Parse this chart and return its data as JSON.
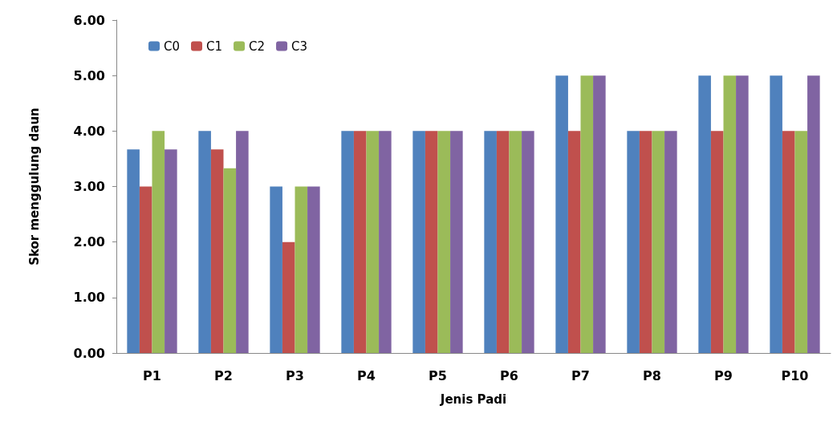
{
  "chart_data": {
    "type": "bar",
    "xlabel": "Jenis Padi",
    "ylabel": "Skor menggulung daun",
    "categories": [
      "P1",
      "P2",
      "P3",
      "P4",
      "P5",
      "P6",
      "P7",
      "P8",
      "P9",
      "P10"
    ],
    "series": [
      {
        "name": "C0",
        "color": "#4f81bd",
        "values": [
          3.67,
          4,
          3,
          4,
          4,
          4,
          5,
          4,
          5,
          5
        ]
      },
      {
        "name": "C1",
        "color": "#c0504d",
        "values": [
          3,
          3.67,
          2,
          4,
          4,
          4,
          4,
          4,
          4,
          4
        ]
      },
      {
        "name": "C2",
        "color": "#9bbb59",
        "values": [
          4,
          3.33,
          3,
          4,
          4,
          4,
          5,
          4,
          5,
          4
        ]
      },
      {
        "name": "C3",
        "color": "#8064a2",
        "values": [
          3.67,
          4,
          3,
          4,
          4,
          4,
          5,
          4,
          5,
          5
        ]
      }
    ],
    "ylim": [
      0,
      6
    ],
    "yticks": [
      {
        "value": 0,
        "label": "0.00"
      },
      {
        "value": 1,
        "label": "1.00"
      },
      {
        "value": 2,
        "label": "2.00"
      },
      {
        "value": 3,
        "label": "3.00"
      },
      {
        "value": 4,
        "label": "4.00"
      },
      {
        "value": 5,
        "label": "5.00"
      },
      {
        "value": 6,
        "label": "6.00"
      }
    ],
    "grid": false,
    "legend": "top left"
  }
}
